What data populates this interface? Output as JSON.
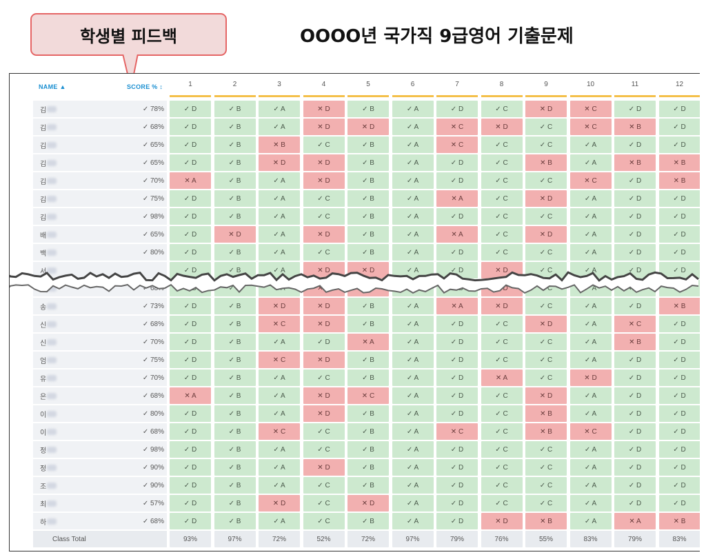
{
  "callout": {
    "text": "학생별 피드백"
  },
  "title": "OOOO년 국가직 9급영어 기출문제",
  "columns": {
    "name": "NAME ▲",
    "score": "SCORE % ↕"
  },
  "questions": [
    "1",
    "2",
    "3",
    "4",
    "5",
    "6",
    "7",
    "8",
    "9",
    "10",
    "11",
    "12"
  ],
  "marks": {
    "correct": "✓",
    "wrong": "✕"
  },
  "colors": {
    "correct_bg": "#cde9cf",
    "wrong_bg": "#f2b0b0",
    "header_accent": "#1a8fd1",
    "question_bar": "#f4c04a",
    "callout_border": "#e56565"
  },
  "students": [
    {
      "initial": "김",
      "score": "78%",
      "answers": [
        "+D",
        "+B",
        "+A",
        "-D",
        "+B",
        "+A",
        "+D",
        "+C",
        "-D",
        "-C",
        "+D",
        "+D"
      ]
    },
    {
      "initial": "김",
      "score": "68%",
      "answers": [
        "+D",
        "+B",
        "+A",
        "-D",
        "-D",
        "+A",
        "-C",
        "-D",
        "+C",
        "-C",
        "-B",
        "+D"
      ]
    },
    {
      "initial": "김",
      "score": "65%",
      "answers": [
        "+D",
        "+B",
        "-B",
        "+C",
        "+B",
        "+A",
        "-C",
        "+C",
        "+C",
        "+A",
        "+D",
        "+D"
      ]
    },
    {
      "initial": "김",
      "score": "65%",
      "answers": [
        "+D",
        "+B",
        "-D",
        "-D",
        "+B",
        "+A",
        "+D",
        "+C",
        "-B",
        "+A",
        "-B",
        "-B"
      ]
    },
    {
      "initial": "김",
      "score": "70%",
      "answers": [
        "-A",
        "+B",
        "+A",
        "-D",
        "+B",
        "+A",
        "+D",
        "+C",
        "+C",
        "-C",
        "+D",
        "-B"
      ]
    },
    {
      "initial": "김",
      "score": "75%",
      "answers": [
        "+D",
        "+B",
        "+A",
        "+C",
        "+B",
        "+A",
        "-A",
        "+C",
        "-D",
        "+A",
        "+D",
        "+D"
      ]
    },
    {
      "initial": "김",
      "score": "98%",
      "answers": [
        "+D",
        "+B",
        "+A",
        "+C",
        "+B",
        "+A",
        "+D",
        "+C",
        "+C",
        "+A",
        "+D",
        "+D"
      ]
    },
    {
      "initial": "배",
      "score": "65%",
      "answers": [
        "+D",
        "-D",
        "+A",
        "-D",
        "+B",
        "+A",
        "-A",
        "+C",
        "-D",
        "+A",
        "+D",
        "+D"
      ]
    },
    {
      "initial": "백",
      "score": "80%",
      "answers": [
        "+D",
        "+B",
        "+A",
        "+C",
        "+B",
        "+A",
        "+D",
        "+C",
        "+C",
        "+A",
        "+D",
        "+D"
      ]
    },
    {
      "initial": "서",
      "score": "",
      "answers": [
        "+D",
        "+B",
        "+A",
        "-D",
        "-D",
        "+A",
        "+D",
        "-D",
        "+C",
        "+A",
        "+D",
        "+D"
      ]
    },
    {
      "initial": "손",
      "score": "68%",
      "answers": [
        "+D",
        "+B",
        "+A",
        "-D",
        "-D",
        "+A",
        "+D",
        "-D",
        "+C",
        "+A",
        "+D",
        "+D"
      ]
    },
    {
      "initial": "송",
      "score": "73%",
      "answers": [
        "+D",
        "+B",
        "-D",
        "-D",
        "+B",
        "+A",
        "-A",
        "-D",
        "+C",
        "+A",
        "+D",
        "-B"
      ]
    },
    {
      "initial": "신",
      "score": "68%",
      "answers": [
        "+D",
        "+B",
        "-C",
        "-D",
        "+B",
        "+A",
        "+D",
        "+C",
        "-D",
        "+A",
        "-C",
        "+D"
      ]
    },
    {
      "initial": "신",
      "score": "70%",
      "answers": [
        "+D",
        "+B",
        "+A",
        "+D",
        "-A",
        "+A",
        "+D",
        "+C",
        "+C",
        "+A",
        "-B",
        "+D"
      ]
    },
    {
      "initial": "엄",
      "score": "75%",
      "answers": [
        "+D",
        "+B",
        "-C",
        "-D",
        "+B",
        "+A",
        "+D",
        "+C",
        "+C",
        "+A",
        "+D",
        "+D"
      ]
    },
    {
      "initial": "유",
      "score": "70%",
      "answers": [
        "+D",
        "+B",
        "+A",
        "+C",
        "+B",
        "+A",
        "+D",
        "-A",
        "+C",
        "-D",
        "+D",
        "+D"
      ]
    },
    {
      "initial": "은",
      "score": "68%",
      "answers": [
        "-A",
        "+B",
        "+A",
        "-D",
        "-C",
        "+A",
        "+D",
        "+C",
        "-D",
        "+A",
        "+D",
        "+D"
      ]
    },
    {
      "initial": "이",
      "score": "80%",
      "answers": [
        "+D",
        "+B",
        "+A",
        "-D",
        "+B",
        "+A",
        "+D",
        "+C",
        "-B",
        "+A",
        "+D",
        "+D"
      ]
    },
    {
      "initial": "이",
      "score": "68%",
      "answers": [
        "+D",
        "+B",
        "-C",
        "+C",
        "+B",
        "+A",
        "-C",
        "+C",
        "-B",
        "-C",
        "+D",
        "+D"
      ]
    },
    {
      "initial": "정",
      "score": "98%",
      "answers": [
        "+D",
        "+B",
        "+A",
        "+C",
        "+B",
        "+A",
        "+D",
        "+C",
        "+C",
        "+A",
        "+D",
        "+D"
      ]
    },
    {
      "initial": "정",
      "score": "90%",
      "answers": [
        "+D",
        "+B",
        "+A",
        "-D",
        "+B",
        "+A",
        "+D",
        "+C",
        "+C",
        "+A",
        "+D",
        "+D"
      ]
    },
    {
      "initial": "조",
      "score": "90%",
      "answers": [
        "+D",
        "+B",
        "+A",
        "+C",
        "+B",
        "+A",
        "+D",
        "+C",
        "+C",
        "+A",
        "+D",
        "+D"
      ]
    },
    {
      "initial": "최",
      "score": "57%",
      "answers": [
        "+D",
        "+B",
        "-D",
        "+C",
        "-D",
        "+A",
        "+D",
        "+C",
        "+C",
        "+A",
        "+D",
        "+D"
      ]
    },
    {
      "initial": "하",
      "score": "68%",
      "answers": [
        "+D",
        "+B",
        "+A",
        "+C",
        "+B",
        "+A",
        "+D",
        "-D",
        "-B",
        "+A",
        "-A",
        "-B"
      ]
    }
  ],
  "total": {
    "label": "Class Total",
    "values": [
      "93%",
      "97%",
      "72%",
      "52%",
      "72%",
      "97%",
      "79%",
      "76%",
      "55%",
      "83%",
      "79%",
      "83%"
    ]
  }
}
